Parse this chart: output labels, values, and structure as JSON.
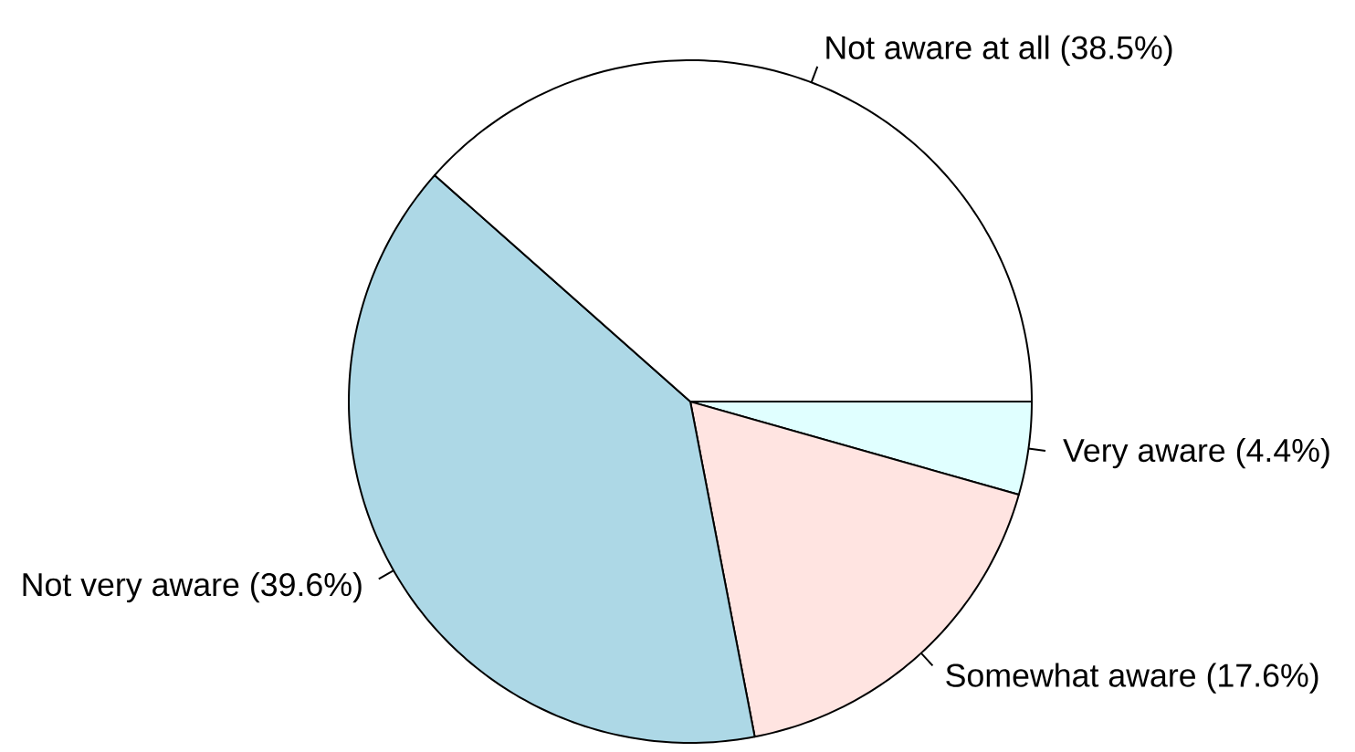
{
  "chart_data": {
    "type": "pie",
    "categories": [
      "Very aware (4.4%)",
      "Somewhat aware (17.6%)",
      "Not very aware (39.6%)",
      "Not aware at all (38.5%)"
    ],
    "values": [
      4.4,
      17.6,
      39.6,
      38.5
    ],
    "colors": [
      "#e0ffff",
      "#ffe4e1",
      "#add8e6",
      "#ffffff"
    ]
  }
}
